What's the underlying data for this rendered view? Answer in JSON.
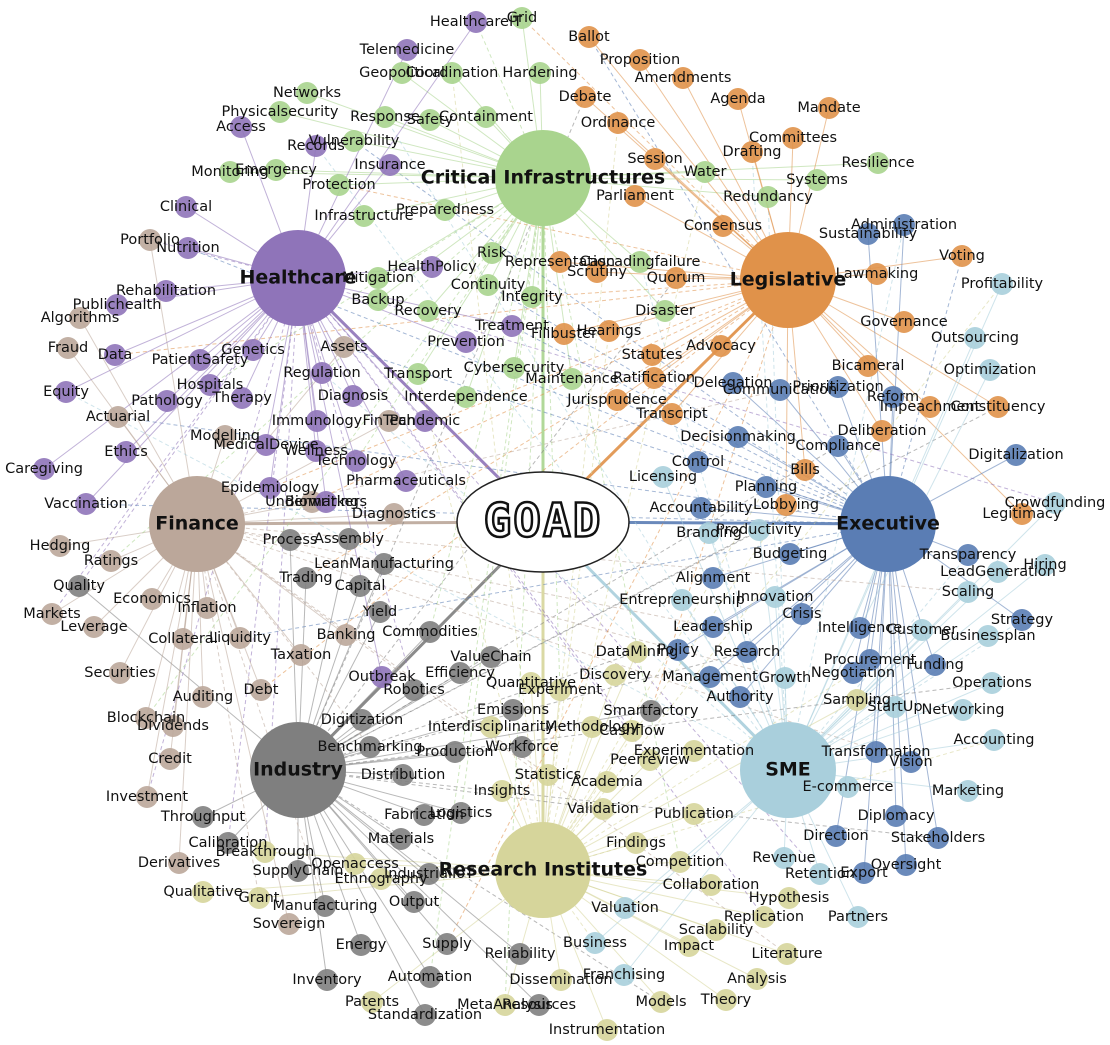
{
  "center": "GOAD",
  "clusters": [
    {
      "hub": "Critical Infrastructures",
      "color": "#a9d48e",
      "nodes": [
        "Grid",
        "Hardening",
        "Geopolitical",
        "Coordination",
        "Networks",
        "Physicalsecurity",
        "Response",
        "Safety",
        "Containment",
        "Vulnerability",
        "Emergency",
        "Monitoring",
        "Protection",
        "Infrastructure",
        "Preparedness",
        "Water",
        "Systems",
        "Resilience",
        "Redundancy",
        "Risk",
        "Mitigation",
        "Continuity",
        "Backup",
        "Recovery",
        "Integrity",
        "Disaster",
        "Cybersecurity",
        "Transport",
        "Interdependence",
        "Maintenance",
        "Cascadingfailure"
      ]
    },
    {
      "hub": "Legislative",
      "color": "#e0924a",
      "nodes": [
        "Ballot",
        "Proposition",
        "Amendments",
        "Debate",
        "Agenda",
        "Mandate",
        "Ordinance",
        "Committees",
        "Session",
        "Drafting",
        "Parliament",
        "Consensus",
        "Voting",
        "Representation",
        "Scrutiny",
        "Quorum",
        "Lawmaking",
        "Governance",
        "Hearings",
        "Filibuster",
        "Advocacy",
        "Statutes",
        "Ratification",
        "Bicameral",
        "Jurisprudence",
        "Transcript",
        "Impeachment",
        "Constituency",
        "Deliberation",
        "Bills",
        "Lobbying",
        "Legitimacy"
      ]
    },
    {
      "hub": "Executive",
      "color": "#5a7db4",
      "nodes": [
        "Administration",
        "Sustainability",
        "Delegation",
        "Communication",
        "Prioritization",
        "Reform",
        "Compliance",
        "Decisionmaking",
        "Control",
        "Planning",
        "Accountability",
        "Budgeting",
        "Transparency",
        "Alignment",
        "Crisis",
        "Leadership",
        "Policy",
        "Intelligence",
        "Research",
        "Management",
        "Procurement",
        "Negotiation",
        "Funding",
        "Authority",
        "Strategy",
        "Digitalization",
        "Transformation",
        "Vision",
        "Diplomacy",
        "Direction",
        "Stakeholders",
        "Oversight",
        "Export"
      ]
    },
    {
      "hub": "SME",
      "color": "#a9cfdc",
      "nodes": [
        "Profitability",
        "Outsourcing",
        "Optimization",
        "Crowdfunding",
        "Hiring",
        "LeadGeneration",
        "Scaling",
        "Customer",
        "Businessplan",
        "Operations",
        "Networking",
        "StartUp",
        "Accounting",
        "Marketing",
        "E-commerce",
        "Retention",
        "Revenue",
        "Partners",
        "Growth",
        "Licensing",
        "Branding",
        "Productivity",
        "Innovation",
        "Entrepreneurship",
        "Business",
        "Franchising",
        "Valuation"
      ]
    },
    {
      "hub": "Research Institutes",
      "color": "#d6d59b",
      "nodes": [
        "DataMining",
        "Discovery",
        "Quantitative",
        "Experiment",
        "Interdisciplinarity",
        "Methodology",
        "Cashflow",
        "Experimentation",
        "Peerreview",
        "Statistics",
        "Academia",
        "Insights",
        "Validation",
        "Publication",
        "Findings",
        "Competition",
        "Collaboration",
        "Hypothesis",
        "Replication",
        "Scalability",
        "Impact",
        "Literature",
        "Analysis",
        "Theory",
        "Models",
        "Instrumentation",
        "Dissemination",
        "MetaAnalysis",
        "Patents",
        "Qualitative",
        "Breakthrough",
        "Openaccess",
        "Ethnography",
        "Grant",
        "Sampling"
      ]
    },
    {
      "hub": "Industry",
      "color": "#7f7f7f",
      "nodes": [
        "Process",
        "Assembly",
        "LeanManufacturing",
        "Trading",
        "Capital",
        "Yield",
        "Commodities",
        "ValueChain",
        "Efficiency",
        "Robotics",
        "Emissions",
        "Digitization",
        "Benchmarking",
        "Production",
        "Workforce",
        "Smartfactory",
        "Distribution",
        "Fabrication",
        "Logistics",
        "Materials",
        "Throughput",
        "Calibration",
        "SupplyChain",
        "IndustrialIoT",
        "Manufacturing",
        "Output",
        "Energy",
        "Supply",
        "Reliability",
        "Inventory",
        "Automation",
        "Resources",
        "Standardization",
        "Quality"
      ]
    },
    {
      "hub": "Finance",
      "color": "#bba79a",
      "nodes": [
        "Portfolio",
        "Algorithms",
        "Fraud",
        "Actuarial",
        "Modelling",
        "FinTech",
        "Underwriting",
        "Diagnostics",
        "Hedging",
        "Ratings",
        "Economics",
        "Inflation",
        "Markets",
        "Leverage",
        "Collateral",
        "Liquidity",
        "Banking",
        "Taxation",
        "Debt",
        "Securities",
        "Auditing",
        "Blockchain",
        "Dividends",
        "Credit",
        "Investment",
        "Derivatives",
        "Sovereign",
        "Assets"
      ]
    },
    {
      "hub": "Healthcare",
      "color": "#8f74b9",
      "nodes": [
        "HealthcareIT",
        "Telemedicine",
        "Access",
        "Records",
        "Insurance",
        "Clinical",
        "Nutrition",
        "Rehabilitation",
        "Publichealth",
        "Data",
        "Genetics",
        "PatientSafety",
        "Hospitals",
        "Therapy",
        "Pathology",
        "Equity",
        "Ethics",
        "Caregiving",
        "Vaccination",
        "MedicalDevice",
        "Wellness",
        "Epidemiology",
        "Biomarkers",
        "Pharmaceuticals",
        "Technology",
        "Immunology",
        "Diagnosis",
        "Regulation",
        "Pandemic",
        "HealthPolicy",
        "Treatment",
        "Prevention",
        "Outbreak"
      ]
    }
  ]
}
